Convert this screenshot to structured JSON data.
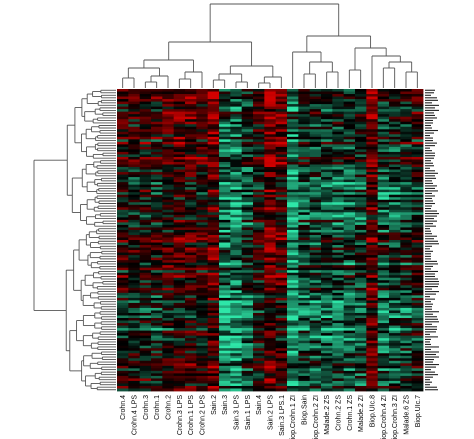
{
  "chart_data": {
    "type": "heatmap",
    "title": "",
    "xlabel": "",
    "ylabel": "",
    "n_rows": 120,
    "colormap": {
      "low": "#2ee6a8",
      "mid": "#000000",
      "high": "#d10000"
    },
    "value_range": [
      -1,
      1
    ],
    "columns": [
      "Crohn.4",
      "Crohn.4 LPS",
      "Crohn.3",
      "Crohn.1",
      "Crohn.2",
      "Crohn.3 LPS",
      "Crohn.1 LPS",
      "Crohn.2 LPS",
      "Sain.2",
      "Sain.3",
      "Sain.3 LPS",
      "Sain.1 LPS",
      "Sain.4",
      "Sain.2 LPS",
      "Sain.3 LPS.1",
      "Biop.Crohn.1 ZI",
      "Biop.Sain",
      "Biop.Crohn.2 ZI",
      "Malade.2 ZS",
      "Crohn.2 ZS",
      "Crohn.1 ZS",
      "Malade.2 ZI",
      "Biop.UIc.8",
      "Biop.Crohn.4 ZI",
      "Biop.Crohn.3 ZI",
      "Malade.6 ZS",
      "Biop.UIc.7"
    ],
    "column_profiles": [
      0.1,
      0.0,
      0.1,
      0.0,
      0.2,
      0.3,
      0.3,
      0.2,
      0.5,
      -0.6,
      -0.7,
      -0.4,
      0.1,
      0.6,
      0.4,
      -0.8,
      -0.3,
      -0.3,
      -0.3,
      -0.4,
      -0.4,
      -0.3,
      0.5,
      -0.4,
      -0.3,
      -0.2,
      0.0
    ]
  }
}
